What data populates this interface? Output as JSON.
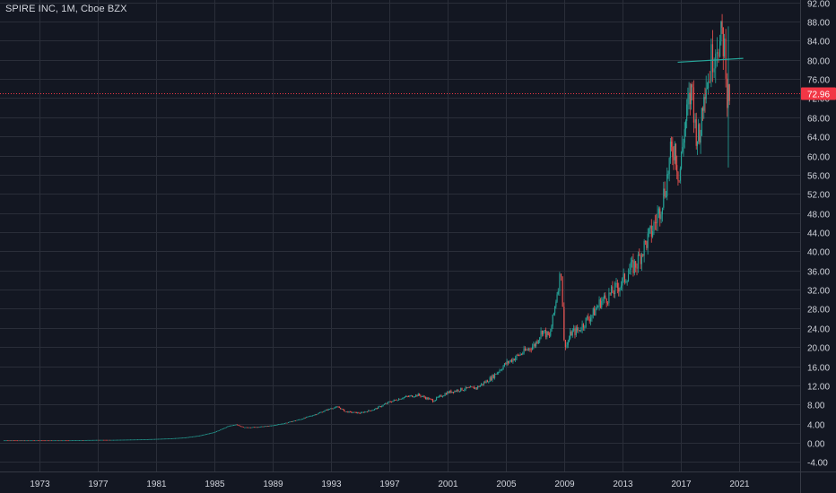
{
  "header": {
    "title": "SPIRE INC, 1M, Cboe BZX"
  },
  "colors": {
    "background": "#131722",
    "grid": "#2a2e39",
    "axis_text": "#d1d4dc",
    "up": "#26a69a",
    "down": "#ef5350",
    "price_line": "#f23645",
    "trendline": "#26a69a"
  },
  "chart_data": {
    "type": "candlestick",
    "title": "SPIRE INC, 1M, Cboe BZX",
    "xlabel": "",
    "ylabel": "",
    "x_tick_labels": [
      "1973",
      "1977",
      "1981",
      "1985",
      "1989",
      "1993",
      "1997",
      "2001",
      "2005",
      "2009",
      "2013",
      "2017",
      "2021"
    ],
    "y_tick_labels": [
      "-4.00",
      "0.00",
      "4.00",
      "8.00",
      "12.00",
      "16.00",
      "20.00",
      "24.00",
      "28.00",
      "32.00",
      "36.00",
      "40.00",
      "44.00",
      "48.00",
      "52.00",
      "56.00",
      "60.00",
      "64.00",
      "68.00",
      "72.00",
      "76.00",
      "80.00",
      "84.00",
      "88.00",
      "92.00"
    ],
    "ylim": [
      -6,
      92.5
    ],
    "xlim": [
      1970.3,
      2025.2
    ],
    "y_grid": true,
    "x_grid": true,
    "current_price": {
      "value": 72.96,
      "label": "72.96"
    },
    "trendline": {
      "x": [
        2016.8,
        2021.3
      ],
      "y": [
        79.5,
        80.3
      ]
    },
    "series": [
      {
        "interval": "1M",
        "x": [
          1970.5,
          1971.0,
          1972.0,
          1973.0,
          1974.0,
          1975.0,
          1976.0,
          1977.0,
          1978.0,
          1979.0,
          1980.0,
          1981.0,
          1982.0,
          1983.0,
          1984.0,
          1985.0,
          1986.0,
          1986.5,
          1987.0,
          1988.0,
          1989.0,
          1990.0,
          1991.0,
          1992.0,
          1993.0,
          1993.5,
          1994.0,
          1995.0,
          1996.0,
          1997.0,
          1998.0,
          1999.0,
          2000.0,
          2001.0,
          2002.0,
          2003.0,
          2004.0,
          2005.0,
          2006.0,
          2007.0,
          2007.5,
          2008.0,
          2008.3,
          2008.6,
          2008.8,
          2008.9,
          2009.0,
          2009.2,
          2009.5,
          2010.0,
          2010.5,
          2011.0,
          2011.5,
          2012.0,
          2012.5,
          2013.0,
          2013.5,
          2014.0,
          2014.5,
          2015.0,
          2015.5,
          2016.0,
          2016.3,
          2016.6,
          2016.9,
          2017.2,
          2017.5,
          2017.8,
          2018.0,
          2018.3,
          2018.6,
          2018.9,
          2019.1,
          2019.3,
          2019.5,
          2019.7,
          2019.85,
          2020.0,
          2020.1,
          2020.2,
          2020.35
        ],
        "close": [
          0.5,
          0.5,
          0.5,
          0.5,
          0.5,
          0.5,
          0.55,
          0.6,
          0.6,
          0.65,
          0.7,
          0.8,
          0.9,
          1.1,
          1.5,
          2.2,
          3.5,
          3.8,
          3.2,
          3.3,
          3.6,
          4.2,
          5.0,
          6.0,
          7.2,
          7.5,
          6.5,
          6.2,
          7.0,
          8.5,
          9.5,
          10.0,
          8.8,
          10.5,
          11.2,
          11.5,
          13.5,
          16.5,
          18.5,
          20.5,
          23.5,
          22.0,
          27.0,
          33.0,
          36.0,
          29.0,
          21.0,
          20.5,
          23.0,
          23.5,
          25.5,
          27.0,
          29.5,
          30.5,
          32.0,
          33.5,
          36.0,
          37.5,
          41.0,
          44.0,
          48.0,
          54.0,
          60.0,
          62.0,
          55.0,
          64.0,
          70.0,
          74.0,
          66.0,
          63.0,
          75.0,
          76.0,
          80.0,
          82.0,
          84.5,
          83.0,
          85.0,
          82.0,
          80.0,
          72.0,
          72.96
        ]
      }
    ]
  }
}
